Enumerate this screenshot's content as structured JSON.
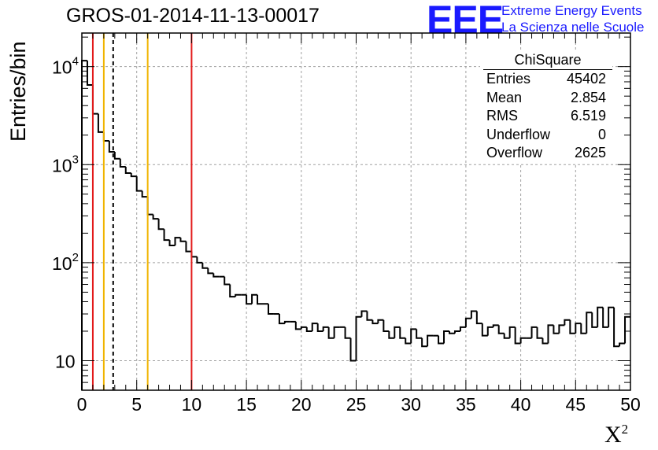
{
  "chart_data": {
    "type": "bar",
    "title": "GROS-01-2014-11-13-00017",
    "xlabel": "X",
    "xlabel_sup": "2",
    "ylabel": "Entries/bin",
    "log_y": true,
    "grid": true,
    "xlim": [
      0,
      50
    ],
    "ylim": [
      5,
      22000
    ],
    "x_ticks": [
      "0",
      "5",
      "10",
      "15",
      "20",
      "25",
      "30",
      "35",
      "40",
      "45",
      "50"
    ],
    "y_ticks": [
      {
        "base": "10",
        "exp": "4",
        "value": 10000
      },
      {
        "base": "10",
        "exp": "3",
        "value": 1000
      },
      {
        "base": "10",
        "exp": "2",
        "value": 100
      },
      {
        "base": "10",
        "exp": "",
        "value": 10
      }
    ],
    "bin_width": 0.5,
    "values": [
      11500,
      6500,
      3300,
      2150,
      1750,
      1350,
      1150,
      950,
      820,
      760,
      540,
      470,
      310,
      280,
      220,
      170,
      150,
      180,
      165,
      130,
      115,
      100,
      88,
      78,
      72,
      72,
      60,
      45,
      47,
      47,
      38,
      47,
      38,
      38,
      30,
      30,
      24,
      25,
      25,
      21,
      22,
      20,
      24,
      20,
      22,
      17,
      22,
      22,
      17,
      10,
      28,
      32,
      26,
      24,
      26,
      20,
      17,
      22,
      17,
      15,
      21,
      17,
      14,
      18,
      18,
      15,
      20,
      19,
      20,
      22,
      27,
      32,
      24,
      18,
      22,
      23,
      19,
      17,
      22,
      15,
      17,
      17,
      22,
      17,
      15,
      23,
      19,
      23,
      26,
      19,
      24,
      19,
      31,
      22,
      35,
      22,
      35,
      14,
      15,
      28
    ],
    "vlines": [
      {
        "x": 1,
        "color": "#e31a1a",
        "style": "solid"
      },
      {
        "x": 2,
        "color": "#f0b400",
        "style": "solid"
      },
      {
        "x": 2.854,
        "color": "#000000",
        "style": "dashed"
      },
      {
        "x": 6,
        "color": "#f0b400",
        "style": "solid"
      },
      {
        "x": 10,
        "color": "#e31a1a",
        "style": "solid"
      }
    ]
  },
  "logo": {
    "text": "EEE",
    "line1": "Extreme Energy Events",
    "line2": "La Scienza nelle Scuole",
    "color": "#1a1aff"
  },
  "stats": {
    "title": "ChiSquare",
    "rows": [
      {
        "label": "Entries",
        "value": "45402"
      },
      {
        "label": "Mean",
        "value": "2.854"
      },
      {
        "label": "RMS",
        "value": "6.519"
      },
      {
        "label": "Underflow",
        "value": "0"
      },
      {
        "label": "Overflow",
        "value": "2625"
      }
    ]
  }
}
